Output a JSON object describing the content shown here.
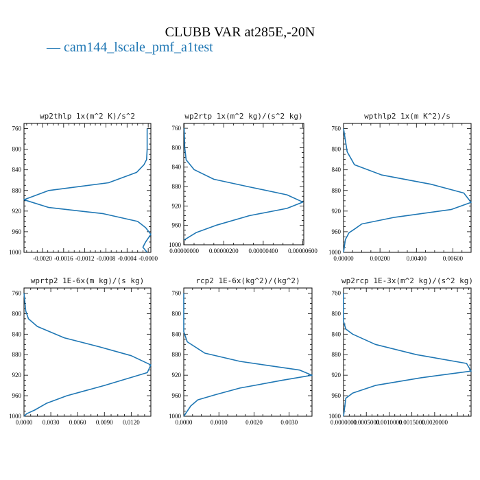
{
  "title": "CLUBB VAR at285E,-20N",
  "legend": {
    "dash": "—",
    "label": "cam144_lscale_pmf_a1test",
    "color": "#1f77b4"
  },
  "chart_data": [
    {
      "type": "line",
      "title": "wp2thlp  1x(m^2 K)/s^2",
      "xlim": [
        -0.00235,
        5e-05
      ],
      "ylim": [
        1000,
        750
      ],
      "xticks": [
        -0.002,
        -0.0016,
        -0.0012,
        -0.0008,
        -0.0004,
        0.0
      ],
      "xtick_labels": [
        "-0.0020",
        "-0.0016",
        "-0.0012",
        "-0.0008",
        "-0.0004",
        "-0.0000"
      ],
      "yticks": [
        760,
        800,
        840,
        880,
        920,
        960,
        1000
      ],
      "series": [
        {
          "color": "#1f77b4",
          "x": [
            -2e-05,
            -2e-05,
            -3e-05,
            -8e-05,
            -0.00022,
            -0.00075,
            -0.00188,
            -0.00235,
            -0.00188,
            -0.00085,
            -0.0002,
            -5e-05,
            5e-05,
            -5e-05,
            -0.0001,
            -2e-05
          ],
          "y": [
            760,
            800,
            820,
            830,
            845,
            865,
            880,
            898,
            913,
            925,
            940,
            952,
            965,
            980,
            990,
            1000
          ]
        }
      ]
    },
    {
      "type": "line",
      "title": "wp2rtp  1x(m^2 kg)/(s^2 kg)",
      "xlim": [
        -2e-08,
        6.05e-06
      ],
      "ylim": [
        1000,
        750
      ],
      "xticks": [
        0.0,
        2e-06,
        4e-06,
        6e-06
      ],
      "xtick_labels": [
        "0.00000000",
        "0.00000200",
        "0.00000400",
        "0.00000600"
      ],
      "yticks": [
        760,
        800,
        840,
        880,
        920,
        960,
        1000
      ],
      "series": [
        {
          "color": "#1f77b4",
          "x": [
            0.0,
            3e-08,
            1e-07,
            5e-07,
            1.5e-06,
            3.2e-06,
            5.2e-06,
            6e-06,
            5.2e-06,
            3.3e-06,
            1.6e-06,
            6e-07,
            0.0
          ],
          "y": [
            760,
            800,
            825,
            845,
            865,
            880,
            897,
            912,
            925,
            940,
            960,
            975,
            990
          ]
        }
      ]
    },
    {
      "type": "line",
      "title": "wpthlp2  1x(m K^2)/s",
      "xlim": [
        0.0,
        0.007
      ],
      "ylim": [
        1000,
        750
      ],
      "xticks": [
        0.0,
        0.002,
        0.004,
        0.006
      ],
      "xtick_labels": [
        "0.00000",
        "0.00200",
        "0.00400",
        "0.00600"
      ],
      "yticks": [
        760,
        800,
        840,
        880,
        920,
        960,
        1000
      ],
      "series": [
        {
          "color": "#1f77b4",
          "x": [
            0.0,
            0.0002,
            0.0006,
            0.0021,
            0.0048,
            0.0066,
            0.007,
            0.0059,
            0.0028,
            0.001,
            0.0006,
            0.0003,
            0.0001,
            0.0
          ],
          "y": [
            760,
            805,
            830,
            850,
            868,
            885,
            903,
            917,
            932,
            945,
            955,
            962,
            975,
            1000
          ]
        }
      ]
    },
    {
      "type": "line",
      "title": "wprtp2  1E-6x(m kg)/(s kg)",
      "xlim": [
        0.0,
        0.0142
      ],
      "ylim": [
        1000,
        750
      ],
      "xticks": [
        0.0,
        0.003,
        0.006,
        0.009,
        0.012
      ],
      "xtick_labels": [
        "0.0000",
        "0.0030",
        "0.0060",
        "0.0090",
        "0.0120"
      ],
      "yticks": [
        760,
        800,
        840,
        880,
        920,
        960,
        1000
      ],
      "series": [
        {
          "color": "#1f77b4",
          "x": [
            0.0,
            0.0002,
            0.0005,
            0.0015,
            0.0045,
            0.0085,
            0.012,
            0.0142,
            0.0138,
            0.009,
            0.0048,
            0.0025,
            0.0012,
            0.0003,
            0.0
          ],
          "y": [
            760,
            795,
            810,
            825,
            847,
            865,
            882,
            900,
            915,
            940,
            960,
            975,
            988,
            995,
            1000
          ]
        }
      ]
    },
    {
      "type": "line",
      "title": "rcp2  1E-6x(kg^2)/(kg^2)",
      "xlim": [
        0.0,
        0.00365
      ],
      "ylim": [
        1000,
        750
      ],
      "xticks": [
        0.0,
        0.001,
        0.002,
        0.003
      ],
      "xtick_labels": [
        "0.0000",
        "0.0010",
        "0.0020",
        "0.0030"
      ],
      "yticks": [
        760,
        800,
        840,
        880,
        920,
        960,
        1000
      ],
      "series": [
        {
          "color": "#1f77b4",
          "x": [
            0.0,
            0.0,
            0.0001,
            0.0006,
            0.0016,
            0.0033,
            0.00365,
            0.0028,
            0.0016,
            0.0009,
            0.0004,
            0.0002,
            0.0
          ],
          "y": [
            760,
            835,
            855,
            877,
            893,
            910,
            920,
            930,
            945,
            958,
            968,
            980,
            1000
          ]
        }
      ]
    },
    {
      "type": "line",
      "title": "wp2rcp  1E-3x(m^2 kg)/(s^2 kg)",
      "xlim": [
        0.0,
        0.0028
      ],
      "ylim": [
        1000,
        750
      ],
      "xticks": [
        0.0,
        0.0005,
        0.001,
        0.0015,
        0.002
      ],
      "xtick_labels": [
        "0.0000000",
        "0.0005000",
        "0.0010000",
        "0.0015000",
        "0.0020000"
      ],
      "yticks": [
        760,
        800,
        840,
        880,
        920,
        960,
        1000
      ],
      "series": [
        {
          "color": "#1f77b4",
          "x": [
            0.0,
            0.0,
            5e-05,
            0.0002,
            0.0007,
            0.0016,
            0.0027,
            0.0028,
            0.0017,
            0.0007,
            0.0002,
            5e-05,
            0.0
          ],
          "y": [
            760,
            815,
            830,
            840,
            860,
            880,
            897,
            912,
            925,
            940,
            955,
            965,
            1000
          ]
        }
      ]
    }
  ]
}
